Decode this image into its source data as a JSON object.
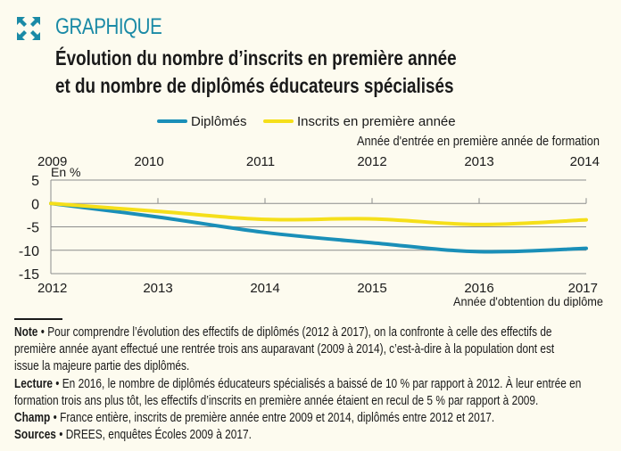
{
  "header": {
    "icon": "expand-arrows-icon",
    "kicker": "GRAPHIQUE",
    "title_line1": "Évolution du nombre d’inscrits en première année",
    "title_line2": "et du nombre de diplômés éducateurs spécialisés"
  },
  "colors": {
    "accent": "#1a8aa6",
    "diplomes": "#1a8fb8",
    "inscrits": "#f5df1a",
    "grid": "#8c8c8c",
    "background": "#fdfbef"
  },
  "chart_data": {
    "type": "line",
    "title": "Évolution du nombre d’inscrits en première année et du nombre de diplômés éducateurs spécialisés",
    "ylabel": "En %",
    "xlabel": "Année d'obtention du diplôme",
    "x2label": "Année d'entrée en première année de formation",
    "x": [
      "2012",
      "2013",
      "2014",
      "2015",
      "2016",
      "2017"
    ],
    "x2": [
      "2009",
      "2010",
      "2011",
      "2012",
      "2013",
      "2014"
    ],
    "yticks": [
      5,
      0,
      -5,
      -10,
      -15
    ],
    "ylim": [
      -15,
      5
    ],
    "grid": true,
    "legend_position": "top",
    "series": [
      {
        "name": "Diplômés",
        "color": "#1a8fb8",
        "values": [
          0,
          -2.9,
          -6.2,
          -8.4,
          -10.3,
          -9.6
        ]
      },
      {
        "name": "Inscrits en première année",
        "color": "#f5df1a",
        "values": [
          0,
          -1.7,
          -3.4,
          -3.3,
          -4.5,
          -3.5
        ]
      }
    ]
  },
  "notes": [
    {
      "label": "Note",
      "lines": [
        "Pour comprendre l’évolution des effectifs de diplômés (2012 à 2017), on la confronte à celle des effectifs de",
        "première année ayant effectué une rentrée trois ans auparavant (2009 à 2014), c’est-à-dire à la population dont est",
        "issue la majeure partie des diplômés."
      ]
    },
    {
      "label": "Lecture",
      "lines": [
        "En 2016, le nombre de diplômés éducateurs spécialisés a baissé de 10 % par rapport à 2012.  À leur entrée en",
        "formation trois ans plus tôt, les effectifs d’inscrits en première année étaient en recul de 5 % par rapport à 2009."
      ]
    },
    {
      "label": "Champ",
      "lines": [
        "France entière, inscrits de première année entre 2009 et 2014, diplômés entre 2012 et 2017."
      ]
    },
    {
      "label": "Sources",
      "lines": [
        "DREES, enquêtes Écoles 2009 à 2017."
      ]
    }
  ],
  "bullet": "•"
}
